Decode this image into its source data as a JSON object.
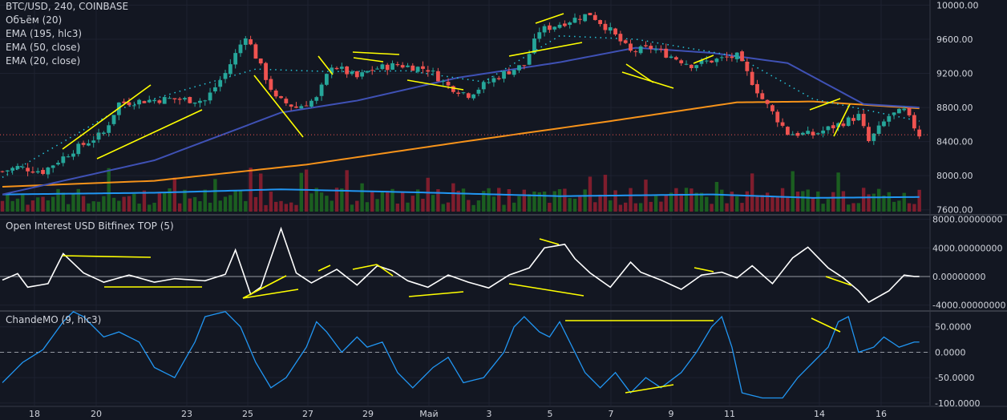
{
  "legend": {
    "main": [
      "BTC/USD, 240, COINBASE",
      "Объём (20)",
      "EMA (195, hlc3)",
      "EMA (50, close)",
      "EMA (20, close)"
    ],
    "open_interest": "Open Interest USD Bitfinex TOP (5)",
    "cmo": "ChandeMO (9, hlc3)"
  },
  "colors": {
    "background": "#131722",
    "grid": "#1e2230",
    "axis_text": "#d1d4dc",
    "candle_up": "#26a69a",
    "candle_down": "#ef5350",
    "volume_up": "#1b5e20",
    "volume_down": "#7f1d2d",
    "volume_ma": "#2196f3",
    "ema195": "#f7931a",
    "ema50": "#3f51b5",
    "ema20": "#26c6da",
    "oi_line": "#ffffff",
    "cmo_line": "#2196f3",
    "trendlines": "#ffff00",
    "last_price_line": "#ef5350"
  },
  "x_axis": {
    "labels": [
      "18",
      "20",
      "23",
      "25",
      "27",
      "29",
      "Май",
      "3",
      "5",
      "7",
      "9",
      "11",
      "14",
      "16"
    ]
  },
  "chart_data": [
    {
      "type": "candlestick",
      "title": "BTC/USD, 240, COINBASE",
      "y_ticks": [
        "10000.00",
        "9600.00",
        "9200.00",
        "8800.00",
        "8400.00",
        "8000.00",
        "7600.00"
      ],
      "ylim": [
        7600,
        10000
      ],
      "last_price": 8480,
      "close_path": [
        [
          0,
          8050
        ],
        [
          3,
          8100
        ],
        [
          8,
          8050
        ],
        [
          14,
          8300
        ],
        [
          20,
          8500
        ],
        [
          23,
          8850
        ],
        [
          28,
          8880
        ],
        [
          33,
          8900
        ],
        [
          40,
          8880
        ],
        [
          44,
          9200
        ],
        [
          48,
          9650
        ],
        [
          50,
          9400
        ],
        [
          54,
          8900
        ],
        [
          58,
          8800
        ],
        [
          62,
          8900
        ],
        [
          65,
          9300
        ],
        [
          70,
          9150
        ],
        [
          73,
          9250
        ],
        [
          78,
          9300
        ],
        [
          84,
          9250
        ],
        [
          88,
          9050
        ],
        [
          92,
          8950
        ],
        [
          96,
          9100
        ],
        [
          99,
          9200
        ],
        [
          103,
          9300
        ],
        [
          106,
          9700
        ],
        [
          111,
          9800
        ],
        [
          116,
          9900
        ],
        [
          120,
          9700
        ],
        [
          124,
          9450
        ],
        [
          128,
          9500
        ],
        [
          132,
          9400
        ],
        [
          136,
          9300
        ],
        [
          140,
          9350
        ],
        [
          145,
          9400
        ],
        [
          150,
          8900
        ],
        [
          155,
          8500
        ],
        [
          160,
          8480
        ],
        [
          165,
          8600
        ],
        [
          169,
          8700
        ],
        [
          171,
          8400
        ],
        [
          175,
          8700
        ],
        [
          178,
          8760
        ],
        [
          181,
          8480
        ]
      ],
      "ema195_path": [
        [
          0,
          7870
        ],
        [
          30,
          7940
        ],
        [
          60,
          8130
        ],
        [
          90,
          8390
        ],
        [
          120,
          8640
        ],
        [
          145,
          8860
        ],
        [
          160,
          8870
        ],
        [
          181,
          8790
        ]
      ],
      "ema50_path": [
        [
          0,
          7780
        ],
        [
          30,
          8180
        ],
        [
          55,
          8740
        ],
        [
          70,
          8880
        ],
        [
          90,
          9150
        ],
        [
          110,
          9330
        ],
        [
          125,
          9500
        ],
        [
          140,
          9440
        ],
        [
          155,
          9320
        ],
        [
          170,
          8840
        ],
        [
          181,
          8800
        ]
      ],
      "ema20_path": [
        [
          0,
          7980
        ],
        [
          23,
          8780
        ],
        [
          35,
          8990
        ],
        [
          50,
          9250
        ],
        [
          65,
          9220
        ],
        [
          80,
          9230
        ],
        [
          95,
          9100
        ],
        [
          110,
          9640
        ],
        [
          125,
          9600
        ],
        [
          145,
          9400
        ],
        [
          160,
          8900
        ],
        [
          181,
          8640
        ]
      ],
      "volume_ma_path": [
        [
          0,
          7780
        ],
        [
          30,
          7800
        ],
        [
          55,
          7840
        ],
        [
          85,
          7800
        ],
        [
          110,
          7760
        ],
        [
          140,
          7780
        ],
        [
          160,
          7740
        ],
        [
          181,
          7750
        ]
      ]
    },
    {
      "type": "line",
      "title": "Open Interest USD Bitfinex TOP (5)",
      "y_ticks": [
        "8000.00000000",
        "4000.00000000",
        "0.00000000",
        "-4000.00000000"
      ],
      "ylim": [
        -4000,
        8000
      ],
      "values_path": [
        [
          0,
          -500
        ],
        [
          3,
          400
        ],
        [
          5,
          -1500
        ],
        [
          9,
          -1000
        ],
        [
          12,
          3200
        ],
        [
          16,
          500
        ],
        [
          20,
          -800
        ],
        [
          25,
          200
        ],
        [
          30,
          -800
        ],
        [
          34,
          -300
        ],
        [
          40,
          -600
        ],
        [
          44,
          300
        ],
        [
          46,
          3700
        ],
        [
          49,
          -2500
        ],
        [
          51,
          -1500
        ],
        [
          55,
          6700
        ],
        [
          58,
          500
        ],
        [
          61,
          -900
        ],
        [
          66,
          1000
        ],
        [
          70,
          -1200
        ],
        [
          74,
          1500
        ],
        [
          77,
          800
        ],
        [
          80,
          -600
        ],
        [
          84,
          -1500
        ],
        [
          88,
          200
        ],
        [
          92,
          -800
        ],
        [
          96,
          -1600
        ],
        [
          100,
          200
        ],
        [
          104,
          1200
        ],
        [
          107,
          4000
        ],
        [
          111,
          4500
        ],
        [
          113,
          2500
        ],
        [
          116,
          500
        ],
        [
          120,
          -1500
        ],
        [
          124,
          2000
        ],
        [
          126,
          600
        ],
        [
          130,
          -500
        ],
        [
          134,
          -1800
        ],
        [
          138,
          200
        ],
        [
          142,
          600
        ],
        [
          145,
          -200
        ],
        [
          148,
          1500
        ],
        [
          152,
          -1000
        ],
        [
          156,
          2600
        ],
        [
          159,
          4100
        ],
        [
          163,
          1200
        ],
        [
          166,
          -200
        ],
        [
          169,
          -2000
        ],
        [
          171,
          -3600
        ],
        [
          175,
          -2000
        ],
        [
          178,
          200
        ],
        [
          180,
          0
        ]
      ]
    },
    {
      "type": "line",
      "title": "ChandeMO (9, hlc3)",
      "y_ticks": [
        "50.0000",
        "0.0000",
        "-50.0000",
        "-100.0000"
      ],
      "ylim": [
        -100,
        50
      ],
      "values_path": [
        [
          0,
          -60
        ],
        [
          4,
          -20
        ],
        [
          8,
          5
        ],
        [
          12,
          60
        ],
        [
          14,
          80
        ],
        [
          16,
          70
        ],
        [
          20,
          30
        ],
        [
          23,
          40
        ],
        [
          27,
          20
        ],
        [
          30,
          -30
        ],
        [
          34,
          -50
        ],
        [
          38,
          20
        ],
        [
          40,
          70
        ],
        [
          44,
          80
        ],
        [
          47,
          50
        ],
        [
          50,
          -20
        ],
        [
          53,
          -70
        ],
        [
          56,
          -50
        ],
        [
          60,
          10
        ],
        [
          62,
          60
        ],
        [
          64,
          40
        ],
        [
          67,
          0
        ],
        [
          70,
          30
        ],
        [
          72,
          10
        ],
        [
          75,
          20
        ],
        [
          78,
          -40
        ],
        [
          81,
          -70
        ],
        [
          85,
          -30
        ],
        [
          88,
          -10
        ],
        [
          91,
          -60
        ],
        [
          95,
          -50
        ],
        [
          99,
          0
        ],
        [
          101,
          50
        ],
        [
          103,
          70
        ],
        [
          106,
          40
        ],
        [
          108,
          30
        ],
        [
          110,
          60
        ],
        [
          112,
          20
        ],
        [
          115,
          -40
        ],
        [
          118,
          -70
        ],
        [
          121,
          -40
        ],
        [
          124,
          -80
        ],
        [
          127,
          -50
        ],
        [
          130,
          -70
        ],
        [
          134,
          -40
        ],
        [
          137,
          0
        ],
        [
          140,
          50
        ],
        [
          142,
          70
        ],
        [
          144,
          10
        ],
        [
          146,
          -80
        ],
        [
          150,
          -90
        ],
        [
          154,
          -90
        ],
        [
          157,
          -50
        ],
        [
          160,
          -20
        ],
        [
          163,
          10
        ],
        [
          165,
          60
        ],
        [
          167,
          70
        ],
        [
          169,
          0
        ],
        [
          172,
          10
        ],
        [
          174,
          30
        ],
        [
          177,
          10
        ],
        [
          180,
          20
        ]
      ]
    }
  ]
}
